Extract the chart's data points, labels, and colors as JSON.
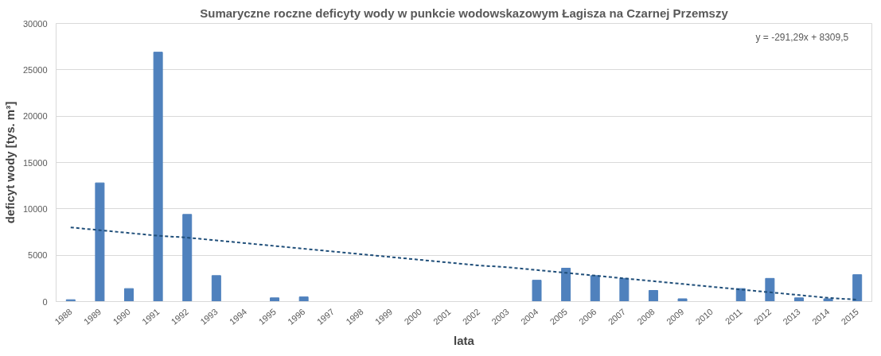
{
  "chart_data": {
    "type": "bar",
    "title": "Sumaryczne roczne deficyty wody w punkcie wodowskazowym Łagisza na Czarnej Przemszy",
    "xlabel": "lata",
    "ylabel": "deficyt wody [tys. m³]",
    "categories": [
      "1988",
      "1989",
      "1990",
      "1991",
      "1992",
      "1993",
      "1994",
      "1995",
      "1996",
      "1997",
      "1998",
      "1999",
      "2000",
      "2001",
      "2002",
      "2003",
      "2004",
      "2005",
      "2006",
      "2007",
      "2008",
      "2009",
      "2010",
      "2011",
      "2012",
      "2013",
      "2014",
      "2015"
    ],
    "series": [
      {
        "color": "#4f81bd",
        "values": [
          200,
          12800,
          1400,
          26900,
          9400,
          2800,
          0,
          400,
          500,
          0,
          0,
          0,
          0,
          0,
          0,
          0,
          2300,
          3600,
          2800,
          2500,
          1200,
          300,
          0,
          1400,
          2500,
          400,
          300,
          2900
        ]
      },
      {
        "type": "line",
        "color": "#1f4e79",
        "line_style": "dashed",
        "values": [
          8000,
          7700,
          7400,
          7100,
          6900,
          6600,
          6300,
          6000,
          5700,
          5400,
          5100,
          4800,
          4500,
          4200,
          3900,
          3700,
          3400,
          3100,
          2800,
          2500,
          2200,
          1900,
          1600,
          1300,
          1000,
          700,
          400,
          200
        ]
      }
    ],
    "ylim": [
      0,
      30000
    ],
    "yticks": [
      0,
      5000,
      10000,
      15000,
      20000,
      25000,
      30000
    ],
    "grid": "y",
    "annotations": [
      "y = -291,29x + 8309,5"
    ]
  }
}
